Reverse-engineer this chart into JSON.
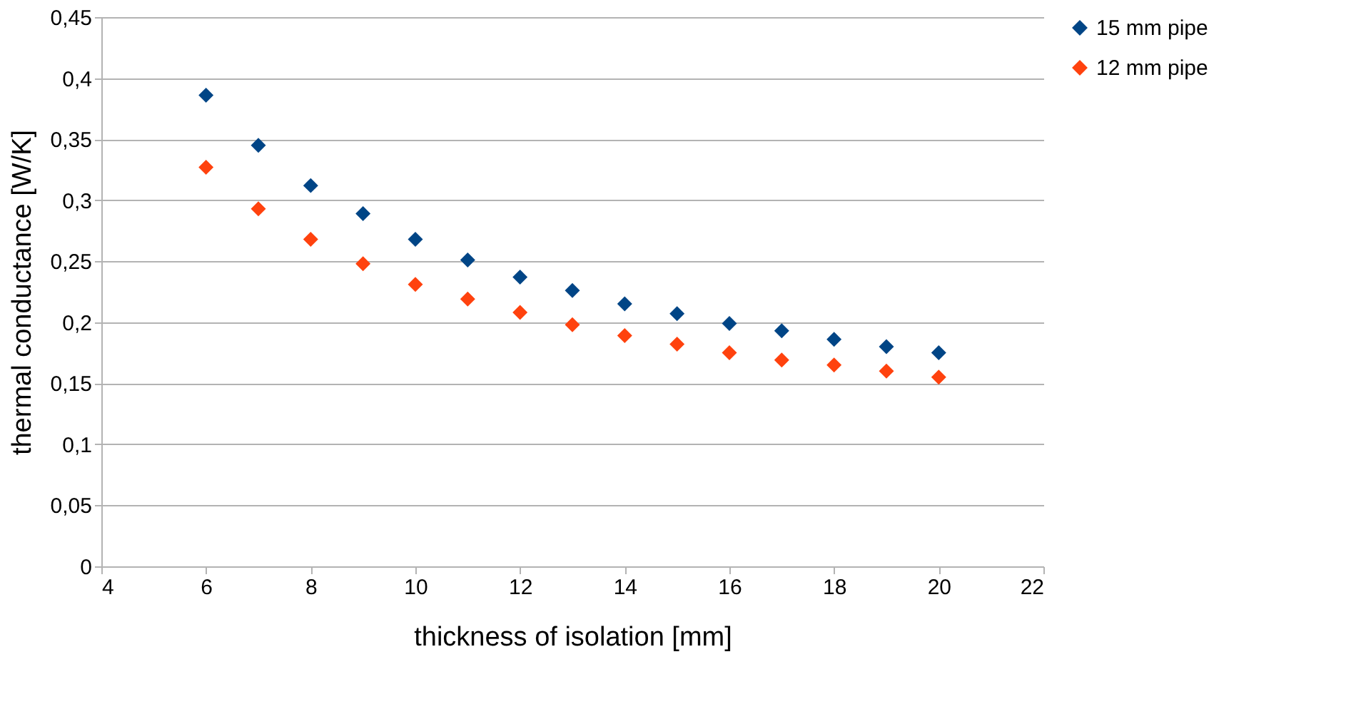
{
  "chart_data": {
    "type": "scatter",
    "xlabel": "thickness of isolation [mm]",
    "ylabel": "thermal conductance [W/K]",
    "x": [
      6,
      7,
      8,
      9,
      10,
      11,
      12,
      13,
      14,
      15,
      16,
      17,
      18,
      19,
      20
    ],
    "series": [
      {
        "name": "15 mm pipe",
        "color": "#004586",
        "values": [
          0.386,
          0.345,
          0.312,
          0.289,
          0.268,
          0.251,
          0.237,
          0.226,
          0.215,
          0.207,
          0.199,
          0.193,
          0.186,
          0.18,
          0.175
        ]
      },
      {
        "name": "12 mm pipe",
        "color": "#ff420e",
        "values": [
          0.327,
          0.293,
          0.268,
          0.248,
          0.231,
          0.219,
          0.208,
          0.198,
          0.189,
          0.182,
          0.175,
          0.169,
          0.165,
          0.16,
          0.155
        ]
      }
    ],
    "xlim": [
      4,
      22
    ],
    "xticks": [
      4,
      6,
      8,
      10,
      12,
      14,
      16,
      18,
      20,
      22
    ],
    "ylim": [
      0,
      0.45
    ],
    "yticks": [
      0,
      {
        "value": 0.05,
        "label": "0,05"
      },
      {
        "value": 0.1,
        "label": "0,1"
      },
      {
        "value": 0.15,
        "label": "0,15"
      },
      {
        "value": 0.2,
        "label": "0,2"
      },
      {
        "value": 0.25,
        "label": "0,25"
      },
      {
        "value": 0.3,
        "label": "0,3"
      },
      {
        "value": 0.35,
        "label": "0,35"
      },
      {
        "value": 0.4,
        "label": "0,4"
      },
      {
        "value": 0.45,
        "label": "0,45"
      }
    ],
    "grid": "y",
    "legend": "right",
    "marker": "diamond"
  }
}
